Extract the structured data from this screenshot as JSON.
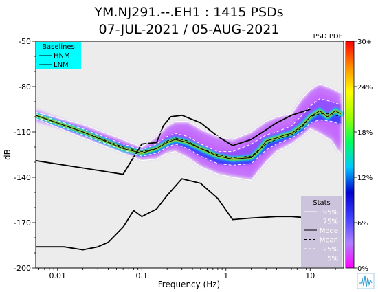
{
  "chart_data": {
    "type": "heatmap",
    "title_line1": "YM.NJ291.--.EH1 : 1415 PSDs",
    "title_line2": "07-JUL-2021 / 05-AUG-2021",
    "xlabel": "Frequency (Hz)",
    "ylabel": "dB",
    "x_scale": "log",
    "xlim": [
      0.0055,
      25
    ],
    "ylim": [
      -200,
      -50
    ],
    "x_ticks": [
      {
        "v": 0.01,
        "label": "0.01"
      },
      {
        "v": 0.1,
        "label": "0.1"
      },
      {
        "v": 1,
        "label": "1"
      },
      {
        "v": 10,
        "label": "10"
      }
    ],
    "y_ticks": [
      {
        "v": -50,
        "label": "-50"
      },
      {
        "v": -80,
        "label": "-80"
      },
      {
        "v": -110,
        "label": "-110"
      },
      {
        "v": -140,
        "label": "-140"
      },
      {
        "v": -170,
        "label": "-170"
      },
      {
        "v": -200,
        "label": "-200"
      }
    ],
    "colorbar": {
      "title": "PSD PDF",
      "stops": [
        "#ff00ff",
        "#b080ff",
        "#4040ff",
        "#0000cc",
        "#00c8ff",
        "#00ff60",
        "#a0ff00",
        "#ffff00",
        "#ff8c00",
        "#ff0000"
      ],
      "ticks": [
        {
          "v": 0,
          "label": "0%"
        },
        {
          "v": 6,
          "label": "6%"
        },
        {
          "v": 12,
          "label": "12%"
        },
        {
          "v": 18,
          "label": "18%"
        },
        {
          "v": 24,
          "label": "24%"
        },
        {
          "v": 30,
          "label": "30+"
        }
      ],
      "max": 30
    },
    "baselines_legend": {
      "title": "Baselines",
      "items": [
        "HNM",
        "LNM"
      ],
      "bg": "#00ffff"
    },
    "stats_legend": {
      "title": "Stats",
      "items": [
        "95%",
        "75%",
        "Mode",
        "Mean",
        "25%",
        "5%"
      ],
      "bg": "#ccc4dc"
    },
    "hnm": {
      "x": [
        0.0055,
        0.06,
        0.1,
        0.15,
        0.18,
        0.22,
        0.3,
        0.5,
        0.8,
        1.2,
        2,
        4,
        6,
        10
      ],
      "y": [
        -129,
        -138,
        -118,
        -117,
        -106,
        -100,
        -99,
        -104,
        -113,
        -119,
        -115,
        -104,
        -99,
        -95
      ]
    },
    "lnm": {
      "x": [
        0.0055,
        0.012,
        0.02,
        0.03,
        0.04,
        0.06,
        0.08,
        0.1,
        0.15,
        0.2,
        0.3,
        0.5,
        0.8,
        1.2,
        2,
        4,
        6,
        10
      ],
      "y": [
        -186,
        -186,
        -188,
        -186,
        -183,
        -173,
        -162,
        -166,
        -161,
        -152,
        -141,
        -144,
        -154,
        -168,
        -167,
        -166,
        -166,
        -167
      ]
    },
    "series": [
      {
        "name": "95%",
        "style": "solid",
        "color": "#ffffff",
        "x": [
          0.0055,
          0.02,
          0.06,
          0.1,
          0.15,
          0.2,
          0.25,
          0.35,
          0.5,
          0.8,
          1.2,
          2,
          3,
          4,
          6,
          8,
          10,
          13,
          18,
          23
        ],
        "y": [
          -97,
          -105,
          -115,
          -120,
          -113,
          -106,
          -103,
          -103,
          -108,
          -113,
          -115,
          -110,
          -103,
          -100,
          -98,
          -88,
          -82,
          -78,
          -81,
          -84
        ]
      },
      {
        "name": "75%",
        "style": "dashed",
        "color": "#ffffff",
        "x": [
          0.0055,
          0.02,
          0.06,
          0.1,
          0.15,
          0.2,
          0.25,
          0.35,
          0.5,
          0.8,
          1.2,
          2,
          3,
          4,
          6,
          8,
          10,
          13,
          18,
          23
        ],
        "y": [
          -98,
          -108,
          -118,
          -122,
          -118,
          -113,
          -111,
          -113,
          -118,
          -123,
          -123,
          -118,
          -112,
          -110,
          -106,
          -99,
          -93,
          -88,
          -90,
          -92
        ]
      },
      {
        "name": "Mode",
        "style": "solid",
        "color": "#000000",
        "x": [
          0.0055,
          0.02,
          0.06,
          0.1,
          0.15,
          0.2,
          0.25,
          0.35,
          0.5,
          0.8,
          1.2,
          2,
          2.5,
          3,
          4,
          5,
          6,
          8,
          10,
          13,
          16,
          20,
          23
        ],
        "y": [
          -99,
          -110,
          -121,
          -124,
          -121,
          -117,
          -115,
          -117,
          -121,
          -126,
          -128,
          -127,
          -122,
          -116,
          -114,
          -112,
          -111,
          -106,
          -100,
          -96,
          -100,
          -96,
          -98
        ]
      },
      {
        "name": "Mean",
        "style": "dashed",
        "color": "#000000",
        "x": [
          0.0055,
          0.02,
          0.06,
          0.1,
          0.15,
          0.2,
          0.25,
          0.35,
          0.5,
          0.8,
          1.2,
          2,
          3,
          4,
          6,
          8,
          10,
          13,
          18,
          23
        ],
        "y": [
          -99,
          -110,
          -120,
          -123,
          -121,
          -116,
          -114,
          -116,
          -121,
          -125,
          -127,
          -126,
          -118,
          -115,
          -112,
          -107,
          -100,
          -98,
          -98,
          -100
        ]
      },
      {
        "name": "25%",
        "style": "dashed",
        "color": "#ffffff",
        "x": [
          0.0055,
          0.02,
          0.06,
          0.1,
          0.15,
          0.2,
          0.25,
          0.35,
          0.5,
          0.8,
          1.2,
          2,
          3,
          4,
          6,
          8,
          10,
          13,
          18,
          23
        ],
        "y": [
          -100,
          -112,
          -122,
          -126,
          -124,
          -120,
          -118,
          -121,
          -126,
          -131,
          -132,
          -131,
          -122,
          -118,
          -114,
          -110,
          -104,
          -102,
          -103,
          -105
        ]
      },
      {
        "name": "5%",
        "style": "solid",
        "color": "#ffffff",
        "x": [
          0.0055,
          0.02,
          0.06,
          0.1,
          0.15,
          0.2,
          0.25,
          0.35,
          0.5,
          0.8,
          1.2,
          2,
          3,
          4,
          6,
          8,
          10,
          13,
          18,
          23
        ],
        "y": [
          -101,
          -114,
          -124,
          -129,
          -128,
          -124,
          -123,
          -127,
          -133,
          -138,
          -140,
          -142,
          -130,
          -123,
          -118,
          -113,
          -108,
          -111,
          -116,
          -125
        ]
      }
    ]
  }
}
